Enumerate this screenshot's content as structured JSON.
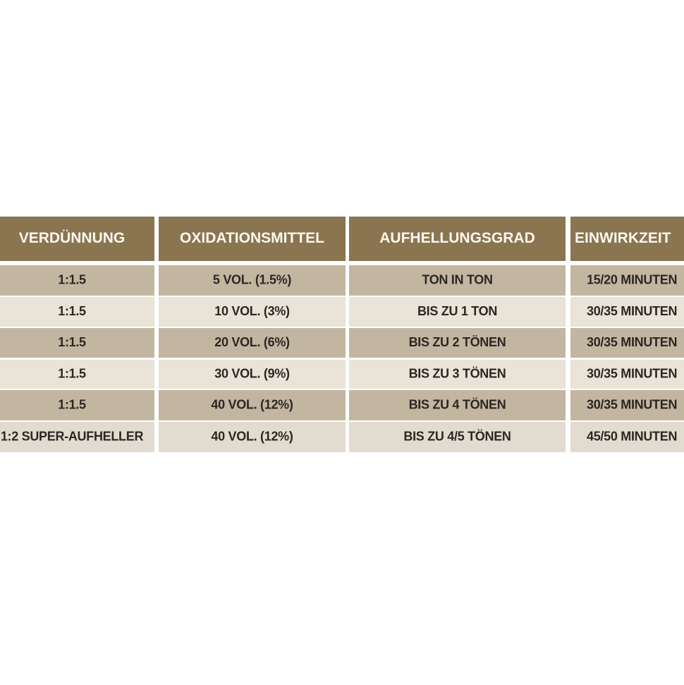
{
  "table": {
    "header": [
      "VERDÜNNUNG",
      "OXIDATIONSMITTEL",
      "AUFHELLUNGSGRAD",
      "EINWIRKZEIT"
    ],
    "rows": [
      [
        "1:1.5",
        "5 VOL. (1.5%)",
        "TON IN TON",
        "15/20 MINUTEN"
      ],
      [
        "1:1.5",
        "10 VOL. (3%)",
        "BIS ZU  1 TON",
        "30/35 MINUTEN"
      ],
      [
        "1:1.5",
        "20 VOL. (6%)",
        "BIS ZU  2 TÖNEN",
        "30/35 MINUTEN"
      ],
      [
        "1:1.5",
        "30 VOL. (9%)",
        "BIS ZU  3 TÖNEN",
        "30/35 MINUTEN"
      ],
      [
        "1:1.5",
        "40 VOL. (12%)",
        "BIS ZU  4 TÖNEN",
        "30/35 MINUTEN"
      ],
      [
        "1:2 SUPER-AUFHELLER",
        "40 VOL. (12%)",
        "BIS ZU  4/5 TÖNEN",
        "45/50 MINUTEN"
      ]
    ]
  }
}
